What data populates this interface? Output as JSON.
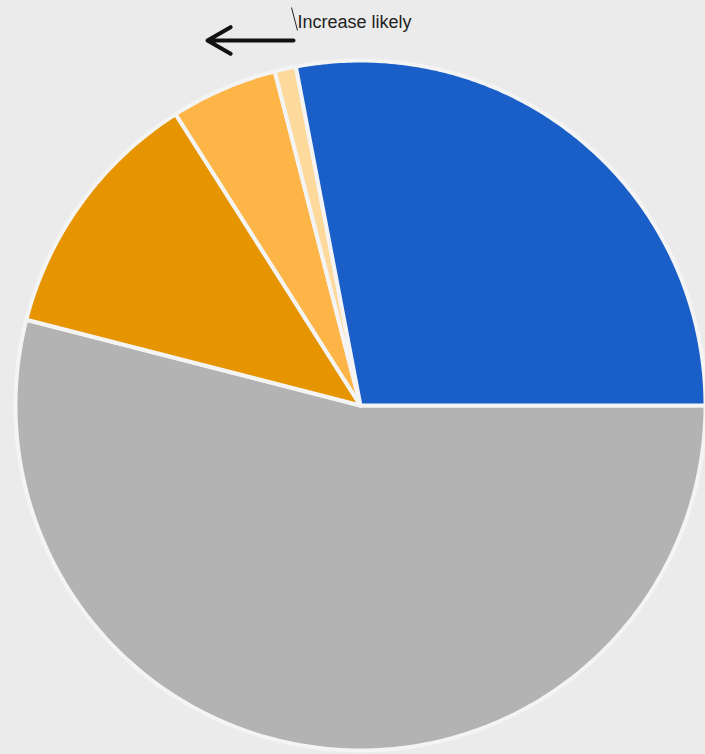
{
  "chart_data": {
    "type": "pie",
    "values": [
      54,
      12,
      5,
      1,
      28
    ],
    "colors": [
      "#b3b3b3",
      "#e69500",
      "#fdb548",
      "#fdd99b",
      "#1a5fc8"
    ],
    "annotation": "Increase likely",
    "tick_labels": false
  }
}
